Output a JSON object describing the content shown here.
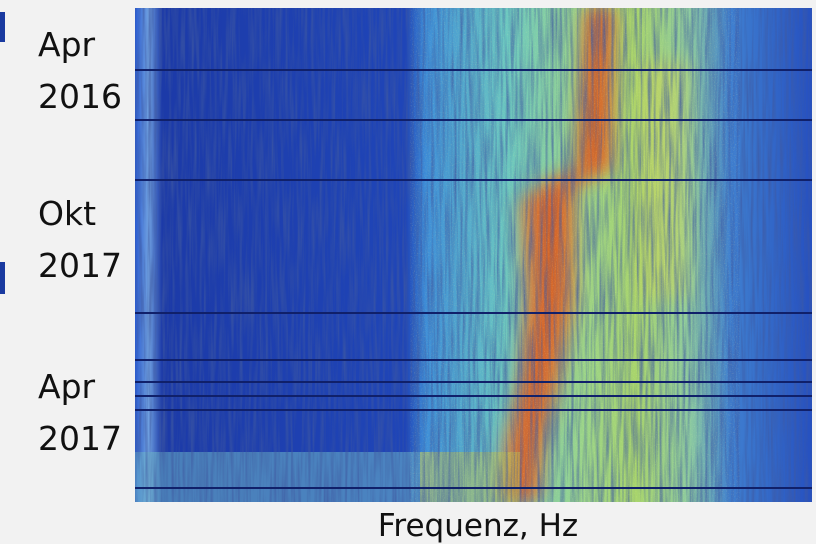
{
  "figure": {
    "y_labels": [
      {
        "month": "Apr",
        "year": "2016"
      },
      {
        "month": "Okt",
        "year": "2017"
      },
      {
        "month": "Apr",
        "year": "2017"
      }
    ],
    "x_label": "Frequenz, Hz"
  }
}
